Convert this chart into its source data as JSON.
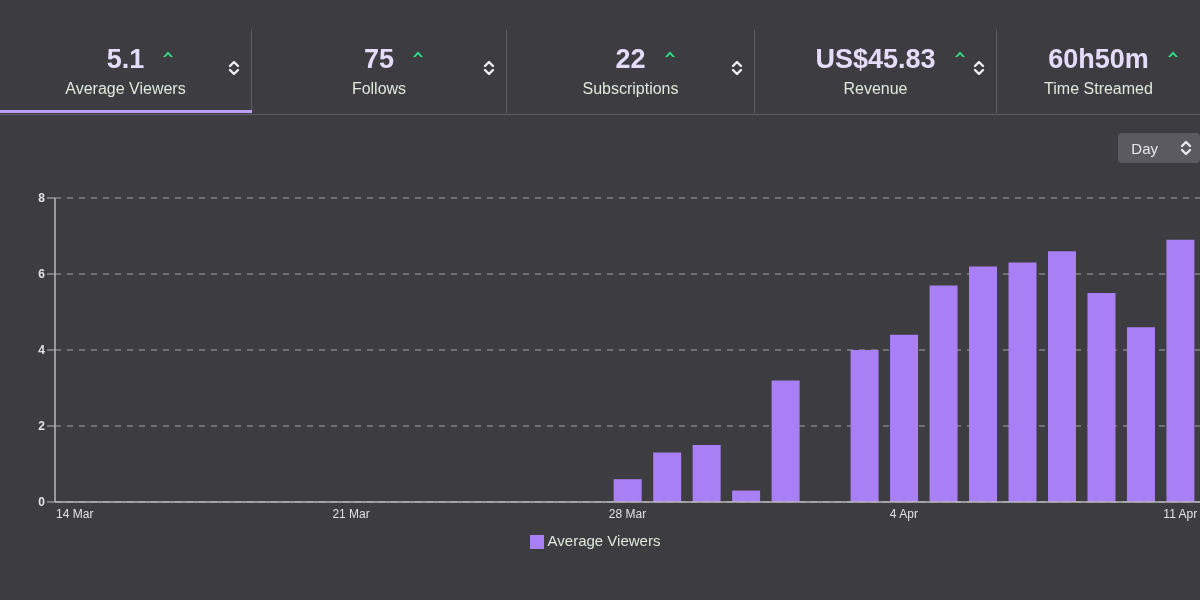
{
  "chart_data": [
    {
      "type": "other",
      "annotations": [
        "5.1",
        "Average Viewers",
        "75",
        "Follows",
        "22",
        "Subscriptions",
        "US$45.83",
        "Revenue",
        "60h50m",
        "Time Streamed"
      ]
    },
    {
      "type": "bar",
      "categories": [
        "14 Mar",
        null,
        null,
        null,
        null,
        null,
        null,
        "21 Mar",
        null,
        null,
        null,
        null,
        null,
        null,
        "28 Mar",
        null,
        null,
        null,
        null,
        null,
        null,
        "4 Apr",
        null,
        null,
        null,
        null,
        null,
        null,
        "11 Apr"
      ],
      "series": [
        {
          "name": "Average Viewers",
          "color": "#a97ff5",
          "values": [
            null,
            null,
            null,
            null,
            null,
            null,
            null,
            null,
            null,
            null,
            null,
            null,
            null,
            null,
            0.6,
            1.3,
            1.5,
            0.3,
            3.2,
            null,
            4.0,
            4.4,
            5.7,
            6.2,
            6.3,
            6.6,
            5.5,
            4.6,
            6.9
          ]
        }
      ],
      "ylim": [
        0,
        8
      ],
      "yticks": [
        0,
        2,
        4,
        6,
        8
      ],
      "grid": "y",
      "legend": "bottom",
      "annotations": [
        "Day"
      ]
    }
  ]
}
